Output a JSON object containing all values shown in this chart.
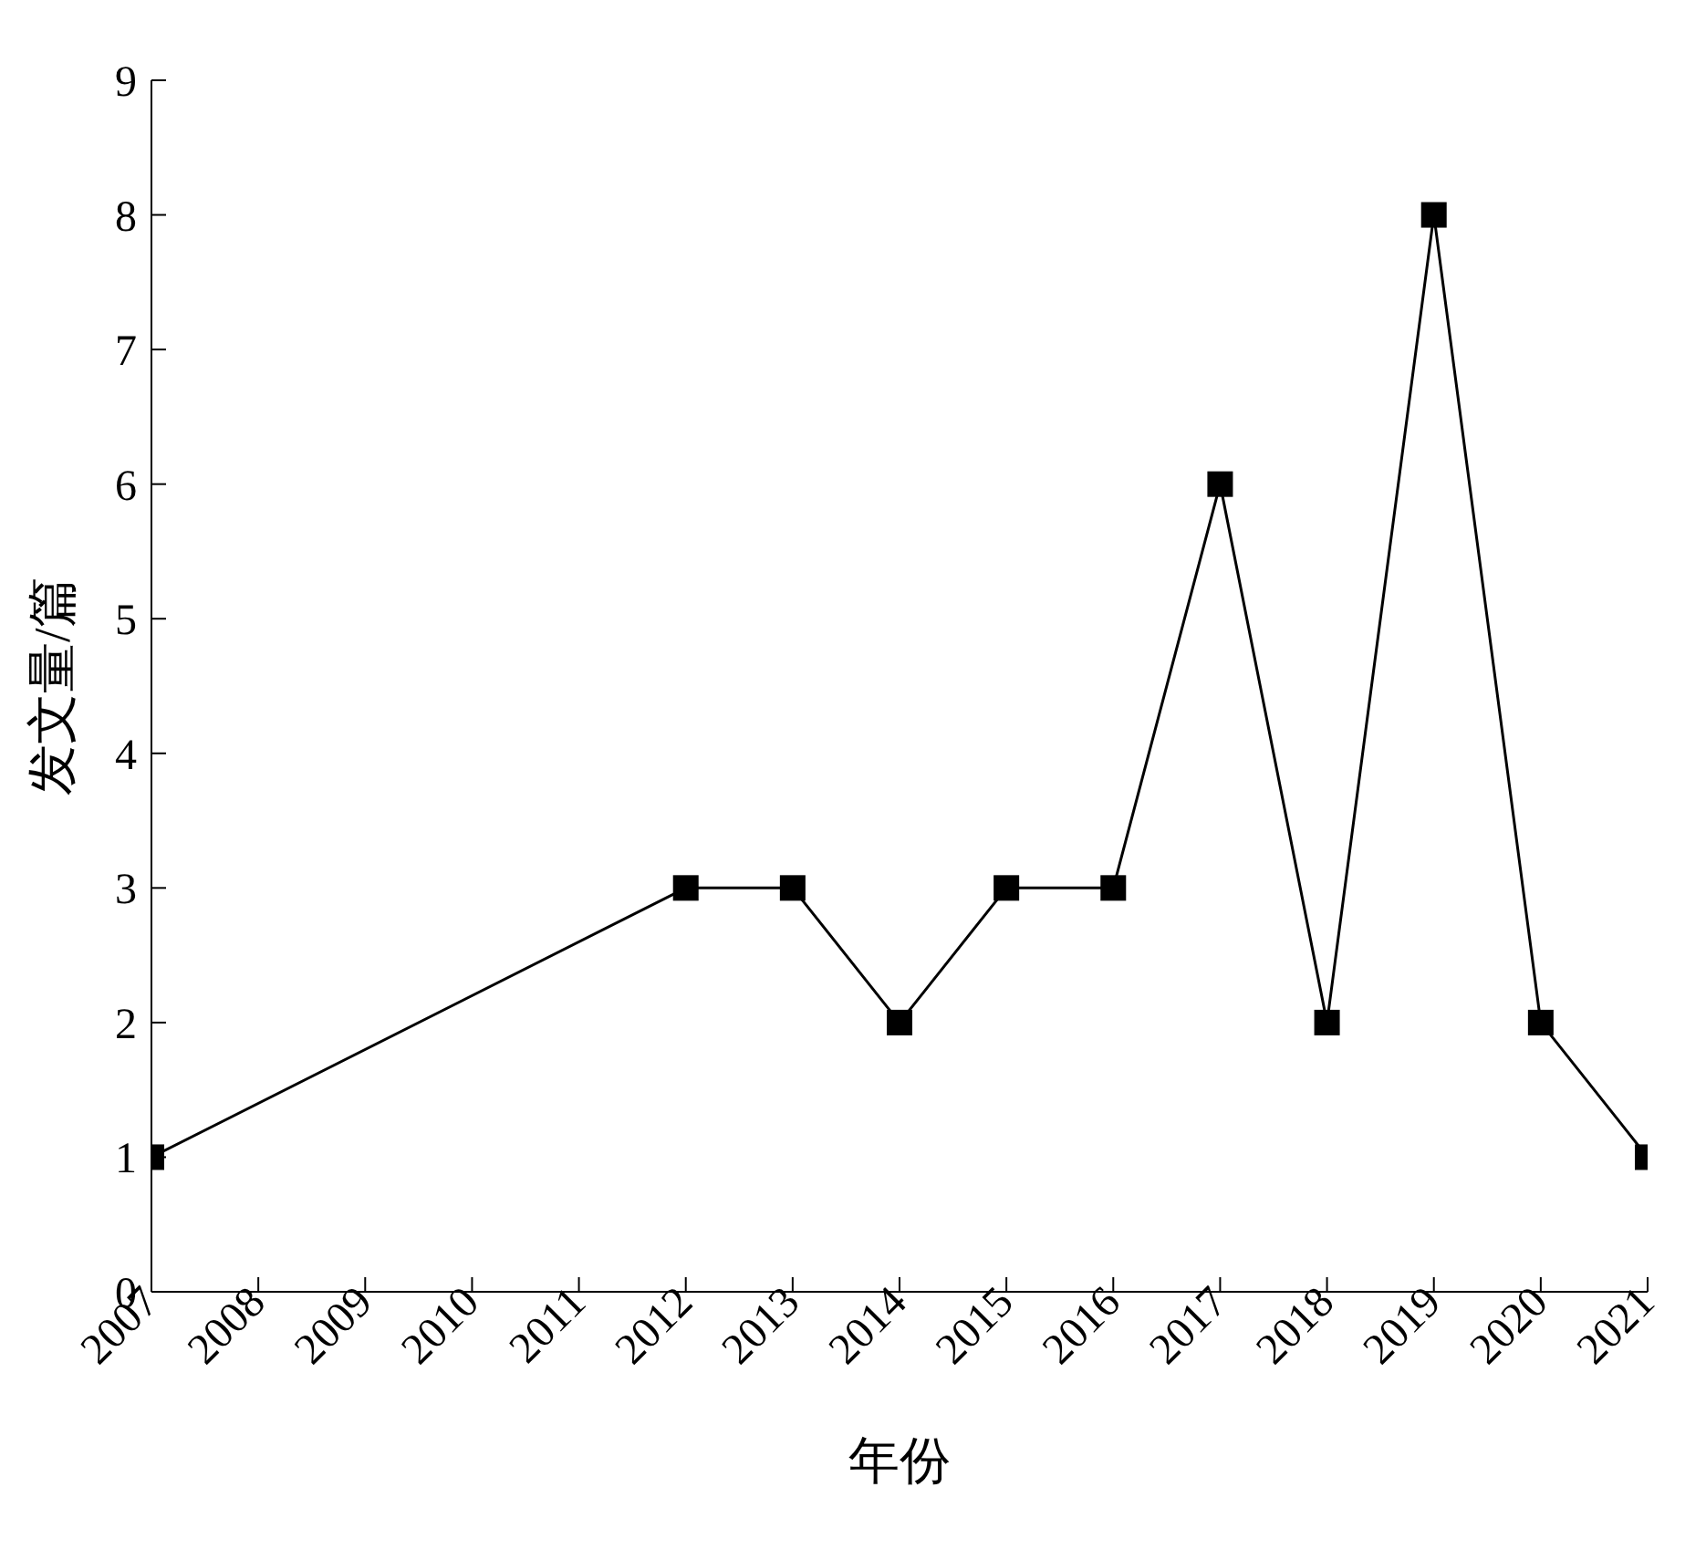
{
  "chart_data": {
    "type": "line",
    "xlabel": "年份",
    "ylabel": "发文量/篇",
    "x": [
      2007,
      2012,
      2013,
      2014,
      2015,
      2016,
      2017,
      2018,
      2019,
      2020,
      2021
    ],
    "series": [
      {
        "color": "#000000",
        "values": [
          1,
          3,
          3,
          2,
          3,
          3,
          6,
          2,
          8,
          2,
          1
        ]
      }
    ],
    "xlim": [
      2007,
      2021
    ],
    "xticks": [
      2007,
      2008,
      2009,
      2010,
      2011,
      2012,
      2013,
      2014,
      2015,
      2016,
      2017,
      2018,
      2019,
      2020,
      2021
    ],
    "ylim": [
      0,
      9
    ],
    "yticks": [
      0,
      1,
      2,
      3,
      4,
      5,
      6,
      7,
      8,
      9
    ],
    "grid": false,
    "legend": false,
    "marker": "square",
    "line_style": "solid"
  }
}
